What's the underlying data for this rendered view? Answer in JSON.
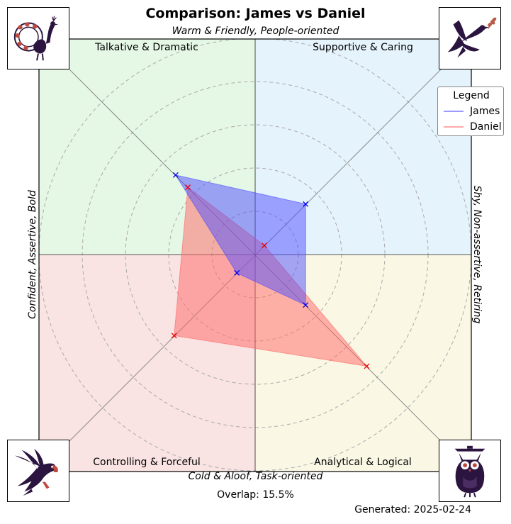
{
  "chart_data": {
    "type": "radar",
    "title": "Comparison: James vs Daniel",
    "axes": {
      "top": "Warm & Friendly, People-oriented",
      "bottom": "Cold & Aloof, Task-oriented",
      "left": "Confident, Assertive, Bold",
      "right": "Shy, Non-assertive, Retiring"
    },
    "quadrants": {
      "top_left": "Talkative & Dramatic",
      "top_right": "Supportive & Caring",
      "bottom_left": "Controlling & Forceful",
      "bottom_right": "Analytical & Logical"
    },
    "quadrant_colors": {
      "top_left": "#e5f7e5",
      "top_right": "#e5f3fc",
      "bottom_left": "#f9e3e3",
      "bottom_right": "#faf8e5"
    },
    "directions": [
      "Supportive & Caring",
      "Talkative & Dramatic",
      "Controlling & Forceful",
      "Analytical & Logical"
    ],
    "rlim": [
      0,
      10
    ],
    "grid": true,
    "legend": {
      "title": "Legend",
      "placement": "top-right"
    },
    "series": [
      {
        "name": "James",
        "color": "#4d4dff",
        "values": [
          3.3,
          5.2,
          1.2,
          3.3
        ]
      },
      {
        "name": "Daniel",
        "color": "#ff6666",
        "values": [
          0.6,
          4.4,
          5.3,
          7.3
        ]
      }
    ]
  },
  "overlap_text": "Overlap: 15.5%",
  "generated_text": "Generated: 2025-02-24",
  "icons": {
    "top_left": "peacock-icon",
    "top_right": "dove-icon",
    "bottom_left": "eagle-icon",
    "bottom_right": "owl-icon"
  }
}
